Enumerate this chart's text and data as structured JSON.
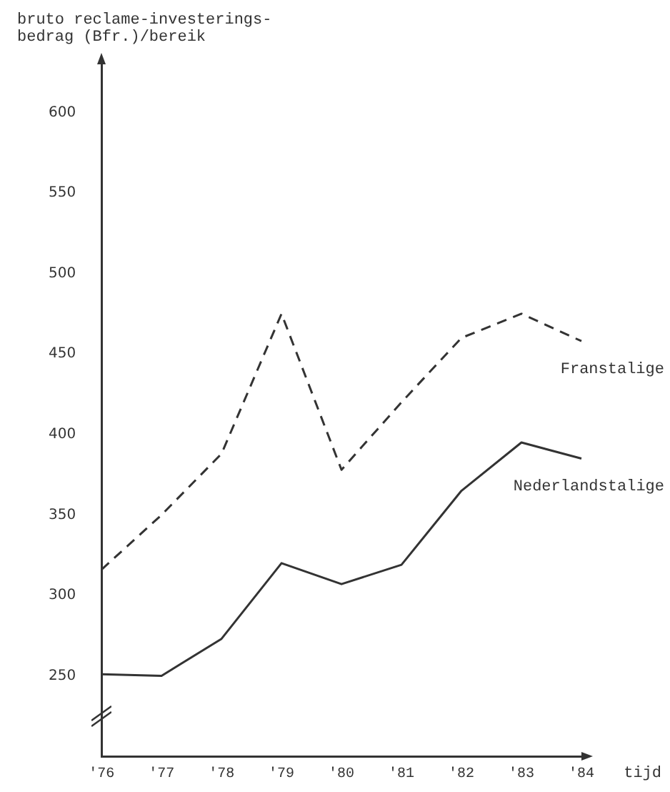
{
  "chart_data": {
    "type": "line",
    "ylabel": "bruto reclame-investerings-\nbedrag (Bfr.)/bereik",
    "xlabel": "tijd",
    "categories": [
      "'76",
      "'77",
      "'78",
      "'79",
      "'80",
      "'81",
      "'82",
      "'83",
      "'84"
    ],
    "series": [
      {
        "name": "Franstalige",
        "color": "#333333",
        "line_style": "dashed",
        "values": [
          316,
          350,
          388,
          475,
          378,
          420,
          460,
          475,
          458
        ]
      },
      {
        "name": "Nederlandstalige",
        "color": "#333333",
        "line_style": "solid",
        "values": [
          251,
          250,
          273,
          320,
          307,
          319,
          365,
          395,
          385
        ]
      }
    ],
    "ylim": [
      200,
      630
    ],
    "yticks": [
      250,
      300,
      350,
      400,
      450,
      500,
      550,
      600
    ],
    "grid": false,
    "legend": false,
    "marker": "none"
  }
}
